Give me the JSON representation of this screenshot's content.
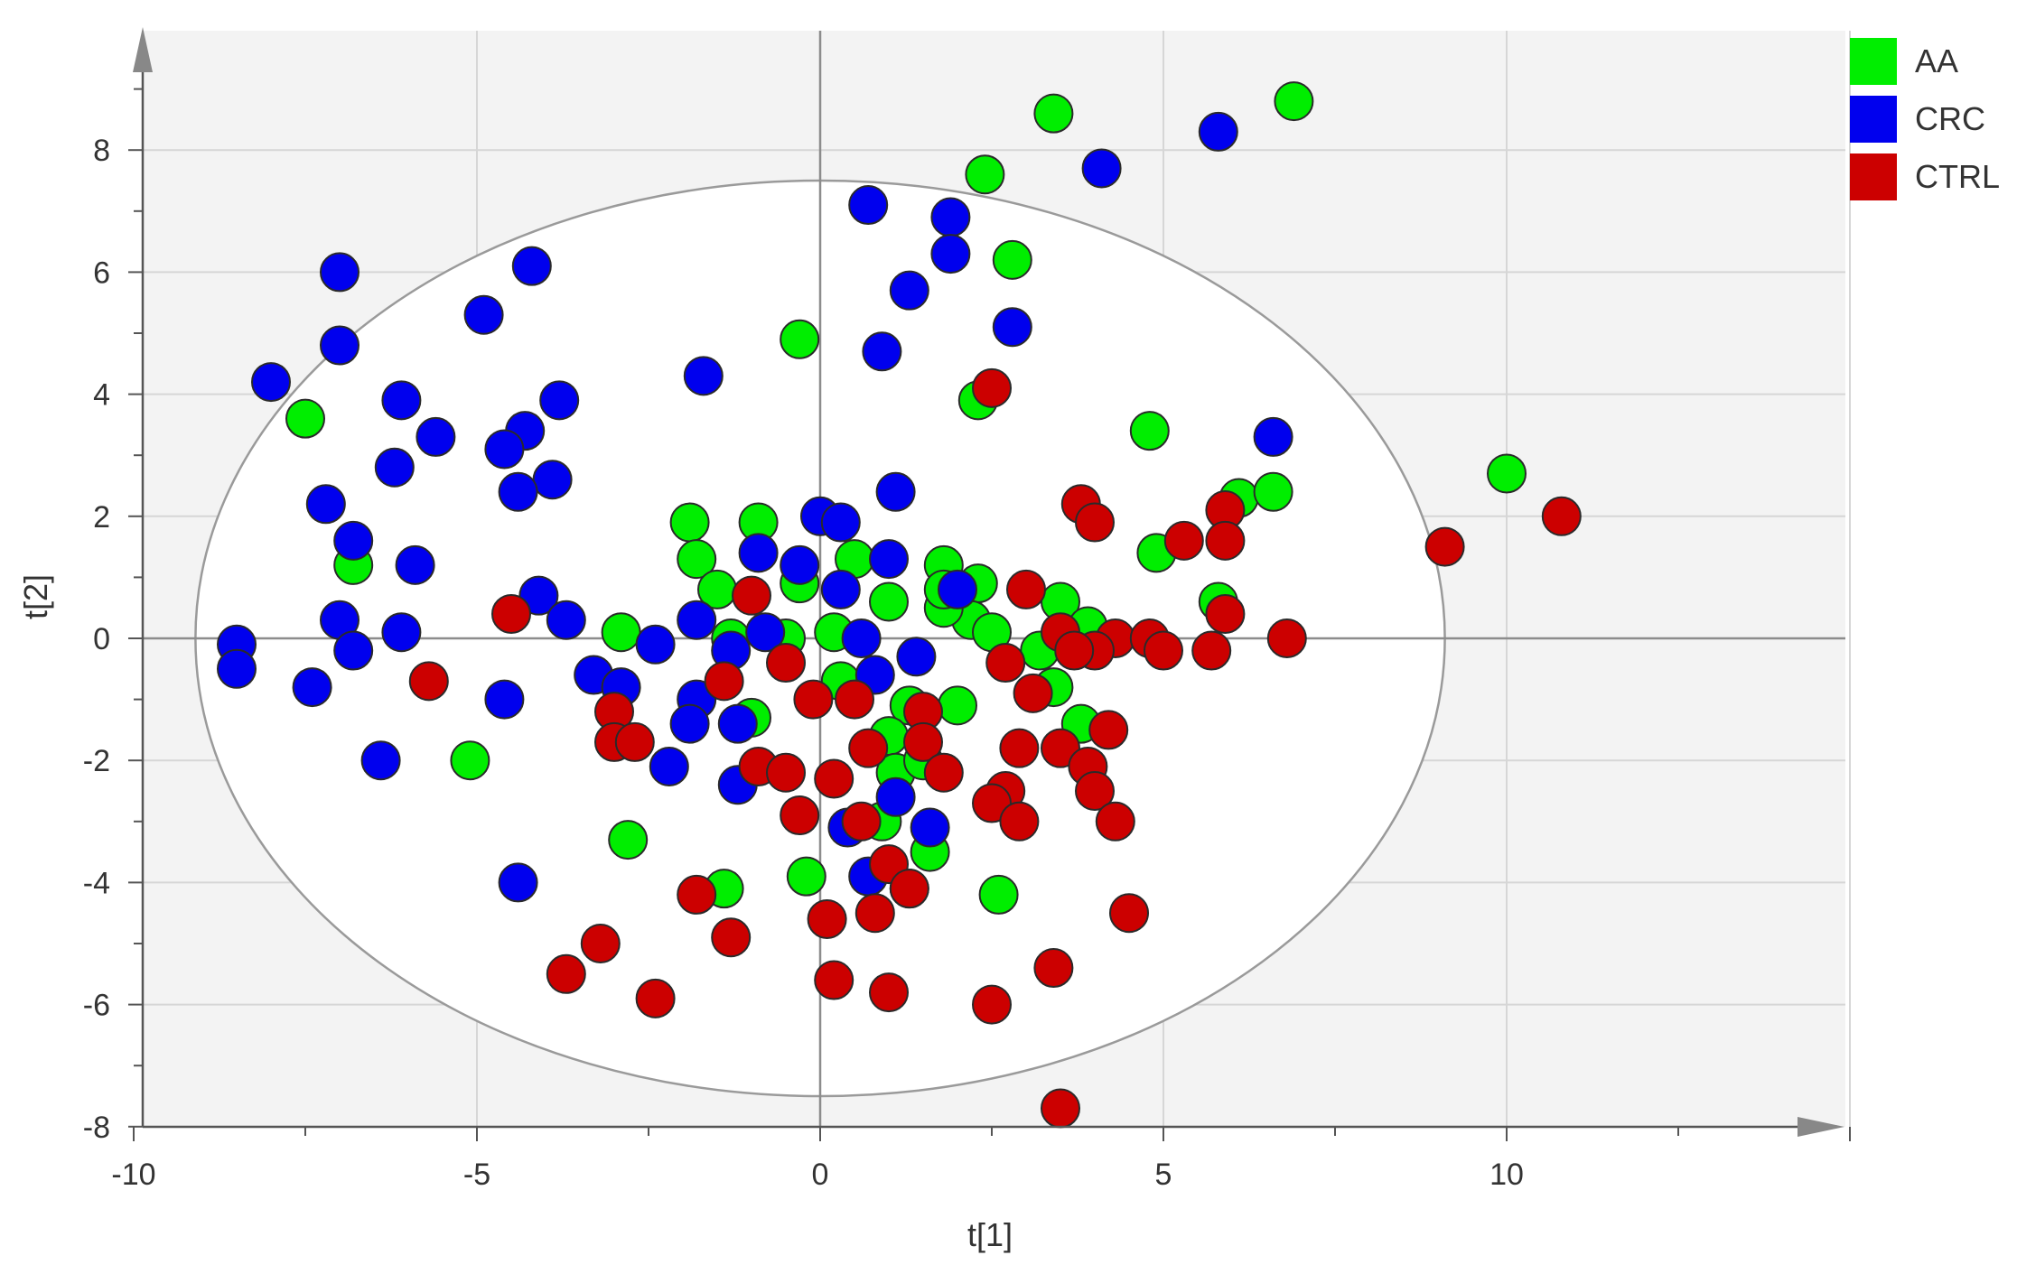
{
  "chart_data": {
    "type": "scatter",
    "title": "",
    "xlabel": "t[1]",
    "ylabel": "t[2]",
    "xlim": [
      -10,
      15
    ],
    "ylim": [
      -8,
      10
    ],
    "xticks": [
      -10,
      -5,
      0,
      5,
      10
    ],
    "yticks": [
      -8,
      -6,
      -4,
      -2,
      0,
      2,
      4,
      6,
      8
    ],
    "xtick_labels": [
      "-10",
      "-5",
      "0",
      "5",
      "10"
    ],
    "ytick_labels": [
      "-8",
      "-6",
      "-4",
      "-2",
      "0",
      "2",
      "4",
      "6",
      "8"
    ],
    "grid": true,
    "legend_position": "top-right",
    "ellipse": {
      "center": [
        0,
        0
      ],
      "rx": 9.1,
      "ry": 7.5
    },
    "series": [
      {
        "name": "AA",
        "color": "#00ee00",
        "points": [
          [
            3.4,
            8.6
          ],
          [
            6.9,
            8.8
          ],
          [
            2.4,
            7.6
          ],
          [
            2.8,
            6.2
          ],
          [
            -0.3,
            4.9
          ],
          [
            2.3,
            3.9
          ],
          [
            -7.5,
            3.6
          ],
          [
            4.8,
            3.4
          ],
          [
            10.0,
            2.7
          ],
          [
            6.1,
            2.3
          ],
          [
            6.6,
            2.4
          ],
          [
            -0.9,
            1.9
          ],
          [
            -1.9,
            1.9
          ],
          [
            -1.8,
            1.3
          ],
          [
            0.5,
            1.3
          ],
          [
            1.8,
            1.2
          ],
          [
            4.9,
            1.4
          ],
          [
            -6.8,
            1.2
          ],
          [
            2.3,
            0.9
          ],
          [
            -1.5,
            0.8
          ],
          [
            -0.3,
            0.9
          ],
          [
            1.0,
            0.6
          ],
          [
            3.5,
            0.6
          ],
          [
            5.8,
            0.6
          ],
          [
            2.2,
            0.3
          ],
          [
            -2.9,
            0.1
          ],
          [
            0.2,
            0.1
          ],
          [
            3.9,
            0.2
          ],
          [
            -0.5,
            0.0
          ],
          [
            2.5,
            0.1
          ],
          [
            0.3,
            -0.7
          ],
          [
            1.8,
            0.5
          ],
          [
            -1.3,
            0.0
          ],
          [
            3.2,
            -0.2
          ],
          [
            1.3,
            -1.1
          ],
          [
            3.4,
            -0.8
          ],
          [
            -1.0,
            -1.3
          ],
          [
            2.0,
            -1.1
          ],
          [
            3.8,
            -1.4
          ],
          [
            1.0,
            -1.6
          ],
          [
            -5.1,
            -2.0
          ],
          [
            1.1,
            -2.2
          ],
          [
            1.5,
            -2.0
          ],
          [
            -2.8,
            -3.3
          ],
          [
            0.9,
            -3.0
          ],
          [
            1.6,
            -3.5
          ],
          [
            -1.4,
            -4.1
          ],
          [
            -0.2,
            -3.9
          ],
          [
            1.3,
            -4.1
          ],
          [
            2.6,
            -4.2
          ],
          [
            1.8,
            0.8
          ]
        ]
      },
      {
        "name": "CRC",
        "color": "#0000ee",
        "points": [
          [
            5.8,
            8.3
          ],
          [
            4.1,
            7.7
          ],
          [
            0.7,
            7.1
          ],
          [
            1.9,
            6.9
          ],
          [
            1.9,
            6.3
          ],
          [
            -7.0,
            6.0
          ],
          [
            -4.2,
            6.1
          ],
          [
            1.3,
            5.7
          ],
          [
            -4.9,
            5.3
          ],
          [
            2.8,
            5.1
          ],
          [
            -7.0,
            4.8
          ],
          [
            0.9,
            4.7
          ],
          [
            -8.0,
            4.2
          ],
          [
            -1.7,
            4.3
          ],
          [
            -6.1,
            3.9
          ],
          [
            -3.8,
            3.9
          ],
          [
            -5.6,
            3.3
          ],
          [
            -4.3,
            3.4
          ],
          [
            -4.6,
            3.1
          ],
          [
            6.6,
            3.3
          ],
          [
            -6.2,
            2.8
          ],
          [
            -3.9,
            2.6
          ],
          [
            -4.4,
            2.4
          ],
          [
            1.1,
            2.4
          ],
          [
            -7.2,
            2.2
          ],
          [
            0.0,
            2.0
          ],
          [
            0.3,
            1.9
          ],
          [
            -6.8,
            1.6
          ],
          [
            -0.9,
            1.4
          ],
          [
            1.0,
            1.3
          ],
          [
            -5.9,
            1.2
          ],
          [
            -0.3,
            1.2
          ],
          [
            0.3,
            0.8
          ],
          [
            2.0,
            0.8
          ],
          [
            -4.1,
            0.7
          ],
          [
            -7.0,
            0.3
          ],
          [
            -3.7,
            0.3
          ],
          [
            -1.8,
            0.3
          ],
          [
            -0.8,
            0.1
          ],
          [
            -6.1,
            0.1
          ],
          [
            -6.8,
            -0.2
          ],
          [
            -8.5,
            -0.1
          ],
          [
            -2.4,
            -0.1
          ],
          [
            0.6,
            0.0
          ],
          [
            1.4,
            -0.3
          ],
          [
            -1.3,
            -0.2
          ],
          [
            -8.5,
            -0.5
          ],
          [
            -3.3,
            -0.6
          ],
          [
            -2.9,
            -0.8
          ],
          [
            -7.4,
            -0.8
          ],
          [
            0.8,
            -0.6
          ],
          [
            -4.6,
            -1.0
          ],
          [
            -1.8,
            -1.0
          ],
          [
            -1.9,
            -1.4
          ],
          [
            -1.2,
            -1.4
          ],
          [
            -6.4,
            -2.0
          ],
          [
            -2.2,
            -2.1
          ],
          [
            -1.2,
            -2.4
          ],
          [
            1.1,
            -2.6
          ],
          [
            0.4,
            -3.1
          ],
          [
            1.6,
            -3.1
          ],
          [
            0.7,
            -3.9
          ],
          [
            -4.4,
            -4.0
          ]
        ]
      },
      {
        "name": "CTRL",
        "color": "#cc0000",
        "points": [
          [
            2.5,
            4.1
          ],
          [
            3.8,
            2.2
          ],
          [
            4.0,
            1.9
          ],
          [
            5.3,
            1.6
          ],
          [
            5.9,
            2.1
          ],
          [
            5.9,
            1.6
          ],
          [
            9.1,
            1.5
          ],
          [
            10.8,
            2.0
          ],
          [
            3.0,
            0.8
          ],
          [
            -1.0,
            0.7
          ],
          [
            -4.5,
            0.4
          ],
          [
            5.9,
            0.4
          ],
          [
            6.8,
            0.0
          ],
          [
            4.3,
            0.0
          ],
          [
            4.8,
            0.0
          ],
          [
            5.0,
            -0.2
          ],
          [
            5.7,
            -0.2
          ],
          [
            3.5,
            0.1
          ],
          [
            4.0,
            -0.2
          ],
          [
            3.7,
            -0.2
          ],
          [
            2.7,
            -0.4
          ],
          [
            -0.5,
            -0.4
          ],
          [
            -5.7,
            -0.7
          ],
          [
            3.1,
            -0.9
          ],
          [
            -1.4,
            -0.7
          ],
          [
            0.5,
            -1.0
          ],
          [
            -3.0,
            -1.2
          ],
          [
            -0.1,
            -1.0
          ],
          [
            1.5,
            -1.2
          ],
          [
            2.9,
            -1.8
          ],
          [
            3.5,
            -1.8
          ],
          [
            4.2,
            -1.5
          ],
          [
            -3.0,
            -1.7
          ],
          [
            -2.7,
            -1.7
          ],
          [
            0.7,
            -1.8
          ],
          [
            1.5,
            -1.7
          ],
          [
            -0.9,
            -2.1
          ],
          [
            -0.5,
            -2.2
          ],
          [
            1.8,
            -2.2
          ],
          [
            0.2,
            -2.3
          ],
          [
            3.9,
            -2.1
          ],
          [
            4.0,
            -2.5
          ],
          [
            2.7,
            -2.5
          ],
          [
            2.5,
            -2.7
          ],
          [
            2.9,
            -3.0
          ],
          [
            4.3,
            -3.0
          ],
          [
            -0.3,
            -2.9
          ],
          [
            0.6,
            -3.0
          ],
          [
            1.0,
            -3.7
          ],
          [
            1.3,
            -4.1
          ],
          [
            -1.8,
            -4.2
          ],
          [
            0.1,
            -4.6
          ],
          [
            0.8,
            -4.5
          ],
          [
            4.5,
            -4.5
          ],
          [
            -1.3,
            -4.9
          ],
          [
            -3.2,
            -5.0
          ],
          [
            -3.7,
            -5.5
          ],
          [
            3.4,
            -5.4
          ],
          [
            0.2,
            -5.6
          ],
          [
            1.0,
            -5.8
          ],
          [
            -2.4,
            -5.9
          ],
          [
            2.5,
            -6.0
          ],
          [
            3.5,
            -7.7
          ]
        ]
      }
    ]
  }
}
